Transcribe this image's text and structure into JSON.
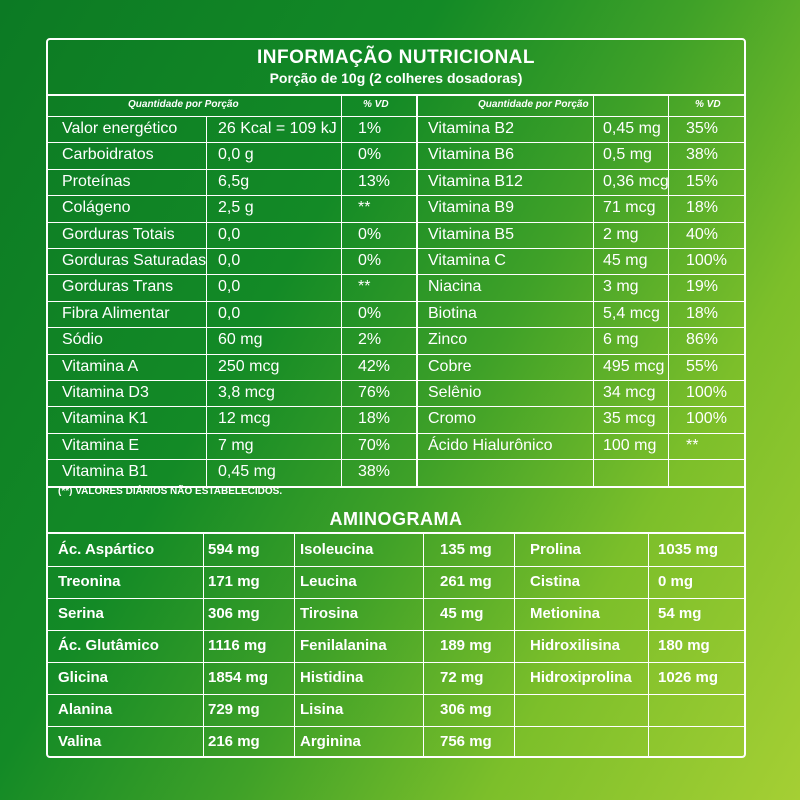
{
  "title": "INFORMAÇÃO NUTRICIONAL",
  "portion": "Porção de 10g (2 colheres dosadoras)",
  "col_headers": {
    "qty": "Quantidade por Porção",
    "vd": "% VD"
  },
  "left_rows": [
    {
      "name": "Valor energético",
      "qty": "26 Kcal = 109 kJ",
      "vd": "1%"
    },
    {
      "name": "Carboidratos",
      "qty": "0,0 g",
      "vd": "0%"
    },
    {
      "name": "Proteínas",
      "qty": "6,5g",
      "vd": "13%"
    },
    {
      "name": "Colágeno",
      "qty": "2,5 g",
      "vd": "**"
    },
    {
      "name": "Gorduras Totais",
      "qty": "0,0",
      "vd": "0%"
    },
    {
      "name": "Gorduras Saturadas",
      "qty": "0,0",
      "vd": "0%"
    },
    {
      "name": "Gorduras Trans",
      "qty": "0,0",
      "vd": "**"
    },
    {
      "name": "Fibra Alimentar",
      "qty": "0,0",
      "vd": "0%"
    },
    {
      "name": "Sódio",
      "qty": "60 mg",
      "vd": "2%"
    },
    {
      "name": "Vitamina A",
      "qty": "250 mcg",
      "vd": "42%"
    },
    {
      "name": "Vitamina D3",
      "qty": "3,8 mcg",
      "vd": "76%"
    },
    {
      "name": "Vitamina K1",
      "qty": "12 mcg",
      "vd": "18%"
    },
    {
      "name": "Vitamina E",
      "qty": "7 mg",
      "vd": "70%"
    },
    {
      "name": "Vitamina B1",
      "qty": "0,45 mg",
      "vd": "38%"
    }
  ],
  "right_rows": [
    {
      "name": "Vitamina B2",
      "qty": "0,45 mg",
      "vd": "35%"
    },
    {
      "name": "Vitamina B6",
      "qty": "0,5 mg",
      "vd": "38%"
    },
    {
      "name": "Vitamina B12",
      "qty": "0,36 mcg",
      "vd": "15%"
    },
    {
      "name": "Vitamina B9",
      "qty": "71 mcg",
      "vd": "18%"
    },
    {
      "name": "Vitamina B5",
      "qty": "2 mg",
      "vd": "40%"
    },
    {
      "name": "Vitamina C",
      "qty": "45 mg",
      "vd": "100%"
    },
    {
      "name": "Niacina",
      "qty": "3 mg",
      "vd": "19%"
    },
    {
      "name": "Biotina",
      "qty": "5,4 mcg",
      "vd": "18%"
    },
    {
      "name": "Zinco",
      "qty": "6 mg",
      "vd": "86%"
    },
    {
      "name": "Cobre",
      "qty": "495 mcg",
      "vd": "55%"
    },
    {
      "name": "Selênio",
      "qty": "34 mcg",
      "vd": "100%"
    },
    {
      "name": "Cromo",
      "qty": "35 mcg",
      "vd": "100%"
    },
    {
      "name": "Ácido Hialurônico",
      "qty": "100 mg",
      "vd": "**"
    },
    {
      "name": "",
      "qty": "",
      "vd": ""
    }
  ],
  "note": "(**) VALORES DIÁRIOS NÃO ESTABELECIDOS.",
  "amino_title": "AMINOGRAMA",
  "amino": [
    [
      {
        "name": "Ác. Aspártico",
        "val": "594 mg"
      },
      {
        "name": "Isoleucina",
        "val": "135 mg"
      },
      {
        "name": "Prolina",
        "val": "1035 mg"
      }
    ],
    [
      {
        "name": "Treonina",
        "val": "171 mg"
      },
      {
        "name": "Leucina",
        "val": "261 mg"
      },
      {
        "name": "Cistina",
        "val": "0 mg"
      }
    ],
    [
      {
        "name": "Serina",
        "val": "306 mg"
      },
      {
        "name": "Tirosina",
        "val": "45 mg"
      },
      {
        "name": "Metionina",
        "val": "54 mg"
      }
    ],
    [
      {
        "name": "Ác. Glutâmico",
        "val": "1116 mg"
      },
      {
        "name": "Fenilalanina",
        "val": "189 mg"
      },
      {
        "name": "Hidroxilisina",
        "val": "180 mg"
      }
    ],
    [
      {
        "name": "Glicina",
        "val": "1854 mg"
      },
      {
        "name": "Histidina",
        "val": "72 mg"
      },
      {
        "name": "Hidroxiprolina",
        "val": "1026 mg"
      }
    ],
    [
      {
        "name": "Alanina",
        "val": "729 mg"
      },
      {
        "name": "Lisina",
        "val": "306 mg"
      },
      {
        "name": "",
        "val": ""
      }
    ],
    [
      {
        "name": "Valina",
        "val": "216 mg"
      },
      {
        "name": "Arginina",
        "val": "756 mg"
      },
      {
        "name": "",
        "val": ""
      }
    ]
  ]
}
